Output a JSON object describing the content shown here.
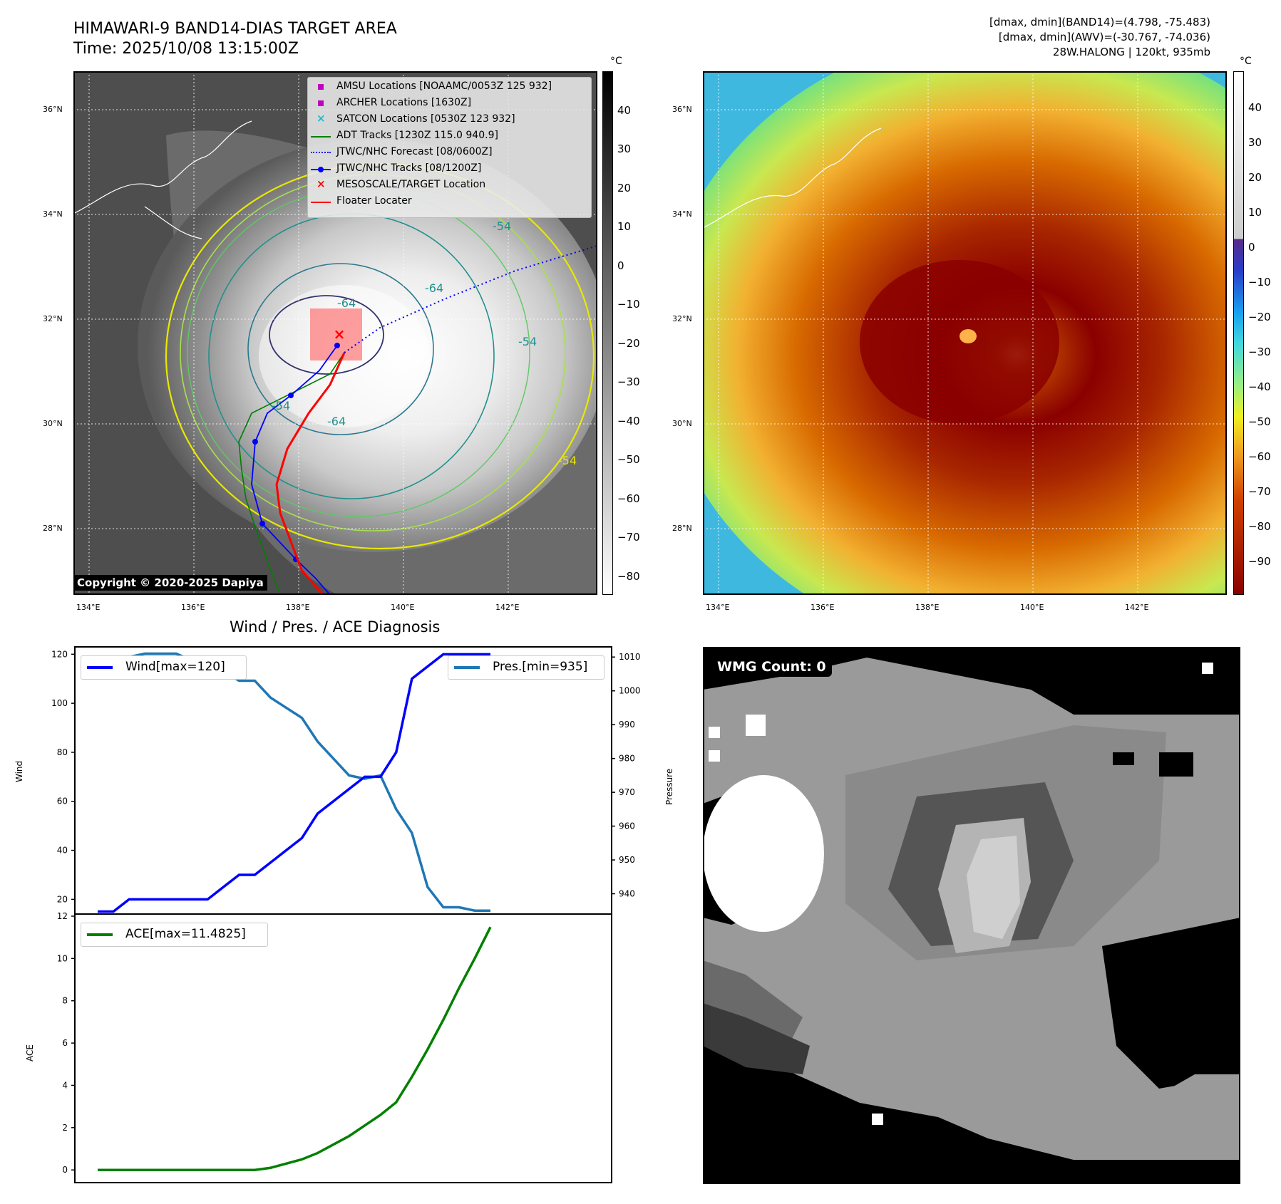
{
  "header": {
    "title_line1": "HIMAWARI-9 BAND14-DIAS TARGET AREA",
    "title_line2": "Time: 2025/10/08 13:15:00Z",
    "info_line1": "[dmax, dmin](BAND14)=(4.798, -75.483)",
    "info_line2": "[dmax, dmin](AWV)=(-30.767, -74.036)",
    "info_line3": "28W.HALONG | 120kt, 935mb"
  },
  "map_ir": {
    "lat_labels": [
      "36°N",
      "34°N",
      "32°N",
      "30°N",
      "28°N"
    ],
    "lon_labels": [
      "134°E",
      "136°E",
      "138°E",
      "140°E",
      "142°E"
    ],
    "contour_labels": [
      "-54",
      "-64",
      "-64",
      "-54",
      "-64",
      "-54",
      "-54"
    ],
    "copyright": "Copyright © 2020-2025 Dapiya",
    "colorbar_unit": "°C",
    "colorbar_ticks": [
      "40",
      "30",
      "20",
      "10",
      "0",
      "−10",
      "−20",
      "−30",
      "−40",
      "−50",
      "−60",
      "−70",
      "−80"
    ],
    "legend": [
      {
        "label": "AMSU Locations [NOAAMC/0053Z 125 932]",
        "color": "#c000c0",
        "icon": "square-marker"
      },
      {
        "label": "ARCHER Locations [1630Z]",
        "color": "#c000c0",
        "icon": "square-marker"
      },
      {
        "label": "SATCON Locations [0530Z 123 932]",
        "color": "#17becf",
        "icon": "x-marker"
      },
      {
        "label": "ADT Tracks [1230Z 115.0 940.9]",
        "color": "#008000",
        "icon": "solid-line"
      },
      {
        "label": "JTWC/NHC Forecast [08/0600Z]",
        "color": "#0000ff",
        "icon": "dotted-line"
      },
      {
        "label": "JTWC/NHC Tracks [08/1200Z]",
        "color": "#0000ff",
        "icon": "line-dot"
      },
      {
        "label": "MESOSCALE/TARGET Location",
        "color": "#ff0000",
        "icon": "x-marker"
      },
      {
        "label": "Floater Locater",
        "color": "#ff0000",
        "icon": "solid-line"
      }
    ]
  },
  "map_wv": {
    "lat_labels": [
      "36°N",
      "34°N",
      "32°N",
      "30°N",
      "28°N"
    ],
    "lon_labels": [
      "134°E",
      "136°E",
      "138°E",
      "140°E",
      "142°E"
    ],
    "colorbar_unit": "°C",
    "colorbar_ticks": [
      "40",
      "30",
      "20",
      "10",
      "0",
      "−10",
      "−20",
      "−30",
      "−40",
      "−50",
      "−60",
      "−70",
      "−80",
      "−90"
    ]
  },
  "wmg": {
    "label": "WMG Count: 0"
  },
  "colors": {
    "wind": "#0000ff",
    "pressure": "#1f77b4",
    "ace": "#008000",
    "floater": "#ff0000"
  },
  "chart_data": [
    {
      "type": "line",
      "title": "Wind / Pres. / ACE Diagnosis",
      "ylabel": "Wind",
      "y2label": "Pressure",
      "ylim": [
        14,
        123
      ],
      "y2lim": [
        934,
        1013
      ],
      "yticks": [
        20,
        40,
        60,
        80,
        100,
        120
      ],
      "y2ticks": [
        940,
        950,
        960,
        970,
        980,
        990,
        1000,
        1010
      ],
      "series": [
        {
          "name": "Wind[max=120]",
          "axis": "left",
          "values": [
            15,
            15,
            20,
            20,
            20,
            20,
            20,
            20,
            25,
            30,
            30,
            35,
            40,
            45,
            55,
            60,
            65,
            70,
            70,
            80,
            110,
            115,
            120,
            120,
            120,
            120
          ]
        },
        {
          "name": "Pres.[min=935]",
          "axis": "right",
          "values": [
            1010,
            1010,
            1010,
            1011,
            1011,
            1011,
            1009,
            1007,
            1006,
            1003,
            1003,
            998,
            995,
            992,
            985,
            980,
            975,
            974,
            975,
            965,
            958,
            942,
            936,
            936,
            935,
            935
          ]
        }
      ]
    },
    {
      "type": "line",
      "ylabel": "ACE",
      "ylim": [
        -0.6,
        12.1
      ],
      "yticks": [
        0,
        2,
        4,
        6,
        8,
        10,
        12
      ],
      "series": [
        {
          "name": "ACE[max=11.4825]",
          "values": [
            0,
            0,
            0,
            0,
            0,
            0,
            0,
            0,
            0,
            0,
            0,
            0.1,
            0.3,
            0.5,
            0.8,
            1.2,
            1.6,
            2.1,
            2.6,
            3.2,
            4.4,
            5.7,
            7.1,
            8.6,
            10.0,
            11.4825
          ]
        }
      ]
    }
  ]
}
